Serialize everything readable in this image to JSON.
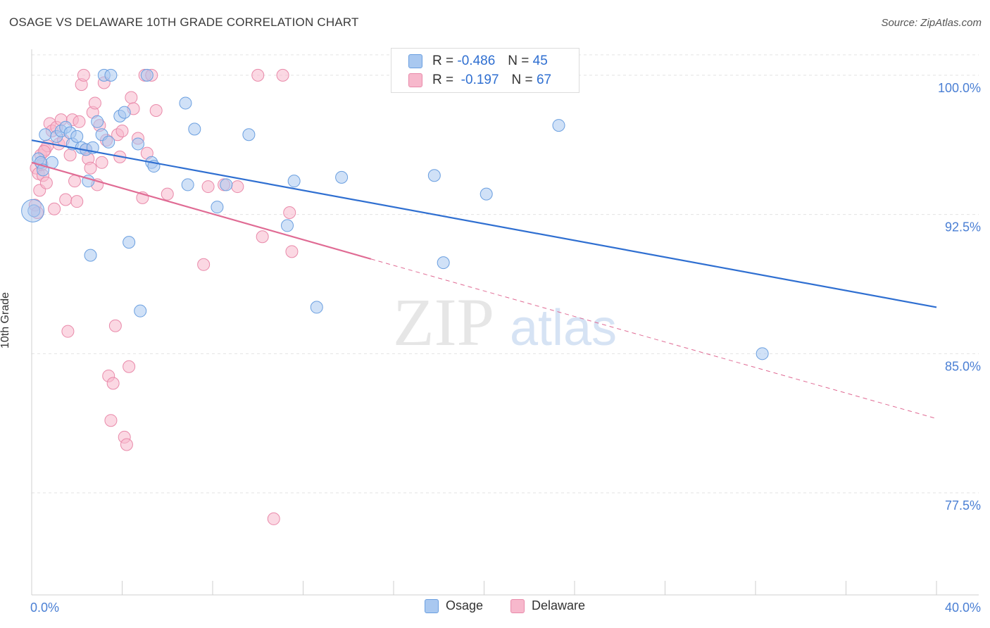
{
  "title": "OSAGE VS DELAWARE 10TH GRADE CORRELATION CHART",
  "source": "Source: ZipAtlas.com",
  "watermark": {
    "zip": "ZIP",
    "atlas": "atlas"
  },
  "legend": {
    "stats": [
      {
        "r_label": "R =",
        "r_value": "-0.486",
        "n_label": "N =",
        "n_value": "45"
      },
      {
        "r_label": "R =",
        "r_value": " -0.197",
        "n_label": "N =",
        "n_value": "67"
      }
    ]
  },
  "colors": {
    "osage_fill": "#a9c8f0",
    "osage_stroke": "#6a9fe0",
    "osage_line": "#2f6fd1",
    "delaware_fill": "#f7b8cc",
    "delaware_stroke": "#e98aaa",
    "delaware_line": "#e06b94",
    "tick_label": "#4a7fd4",
    "grid": "#e3e3e3"
  },
  "chart_data": {
    "type": "scatter",
    "xlabel": "",
    "ylabel": "10th Grade",
    "xlim": [
      0,
      40
    ],
    "ylim": [
      72,
      101.4
    ],
    "x_tick_labels": [
      "0.0%",
      "40.0%"
    ],
    "y_ticks": [
      {
        "value": 100.0,
        "label": "100.0%"
      },
      {
        "value": 92.5,
        "label": "92.5%"
      },
      {
        "value": 85.0,
        "label": "85.0%"
      },
      {
        "value": 77.5,
        "label": "77.5%"
      }
    ],
    "legend_position": "top-center",
    "grid": true,
    "series": [
      {
        "name": "Osage",
        "points": [
          [
            0.1,
            92.7
          ],
          [
            0.3,
            95.5
          ],
          [
            0.4,
            95.3
          ],
          [
            0.5,
            94.9
          ],
          [
            0.6,
            96.8
          ],
          [
            0.9,
            95.3
          ],
          [
            1.1,
            96.7
          ],
          [
            1.3,
            97.0
          ],
          [
            1.5,
            97.2
          ],
          [
            1.7,
            96.9
          ],
          [
            1.8,
            96.3
          ],
          [
            2.0,
            96.7
          ],
          [
            2.2,
            96.1
          ],
          [
            2.4,
            96.0
          ],
          [
            2.5,
            94.3
          ],
          [
            2.6,
            90.3
          ],
          [
            2.7,
            96.1
          ],
          [
            2.9,
            97.5
          ],
          [
            3.1,
            96.8
          ],
          [
            3.2,
            100.0
          ],
          [
            3.4,
            96.4
          ],
          [
            3.5,
            100.0
          ],
          [
            3.9,
            97.8
          ],
          [
            4.1,
            98.0
          ],
          [
            4.3,
            91.0
          ],
          [
            4.7,
            96.3
          ],
          [
            4.8,
            87.3
          ],
          [
            5.1,
            100.0
          ],
          [
            5.3,
            95.3
          ],
          [
            5.4,
            95.1
          ],
          [
            6.8,
            98.5
          ],
          [
            6.9,
            94.1
          ],
          [
            7.2,
            97.1
          ],
          [
            8.2,
            92.9
          ],
          [
            8.6,
            94.1
          ],
          [
            9.6,
            96.8
          ],
          [
            11.3,
            91.9
          ],
          [
            11.6,
            94.3
          ],
          [
            12.6,
            87.5
          ],
          [
            13.7,
            94.5
          ],
          [
            17.8,
            94.6
          ],
          [
            18.2,
            89.9
          ],
          [
            20.1,
            93.6
          ],
          [
            23.3,
            97.3
          ],
          [
            32.3,
            85.0
          ]
        ],
        "trend": {
          "x": [
            0,
            40
          ],
          "y": [
            96.5,
            87.5
          ],
          "dashed": false
        }
      },
      {
        "name": "Delaware",
        "points": [
          [
            0.2,
            95.0
          ],
          [
            0.3,
            94.7
          ],
          [
            0.4,
            95.7
          ],
          [
            0.5,
            94.6
          ],
          [
            0.6,
            96.0
          ],
          [
            0.7,
            96.2
          ],
          [
            0.8,
            97.4
          ],
          [
            0.9,
            97.0
          ],
          [
            1.0,
            92.8
          ],
          [
            1.1,
            97.2
          ],
          [
            1.2,
            96.3
          ],
          [
            1.3,
            97.6
          ],
          [
            1.4,
            96.5
          ],
          [
            1.5,
            93.3
          ],
          [
            1.6,
            86.2
          ],
          [
            1.7,
            95.7
          ],
          [
            1.8,
            97.6
          ],
          [
            1.9,
            94.3
          ],
          [
            2.0,
            93.2
          ],
          [
            2.1,
            97.5
          ],
          [
            2.2,
            99.5
          ],
          [
            2.3,
            100.0
          ],
          [
            2.4,
            96.0
          ],
          [
            2.5,
            95.5
          ],
          [
            2.6,
            95.0
          ],
          [
            2.7,
            98.0
          ],
          [
            2.8,
            98.5
          ],
          [
            2.9,
            94.1
          ],
          [
            3.0,
            97.3
          ],
          [
            3.1,
            95.3
          ],
          [
            3.2,
            99.6
          ],
          [
            3.3,
            96.5
          ],
          [
            3.4,
            83.8
          ],
          [
            3.5,
            81.4
          ],
          [
            3.6,
            83.4
          ],
          [
            3.7,
            86.5
          ],
          [
            3.8,
            96.8
          ],
          [
            3.9,
            95.6
          ],
          [
            4.0,
            97.0
          ],
          [
            4.1,
            80.5
          ],
          [
            4.2,
            80.1
          ],
          [
            4.3,
            84.3
          ],
          [
            4.4,
            98.8
          ],
          [
            4.5,
            98.2
          ],
          [
            4.7,
            96.6
          ],
          [
            4.9,
            93.4
          ],
          [
            5.0,
            100.0
          ],
          [
            5.1,
            95.8
          ],
          [
            5.3,
            100.0
          ],
          [
            5.5,
            98.1
          ],
          [
            6.0,
            93.6
          ],
          [
            7.6,
            89.8
          ],
          [
            7.8,
            94.0
          ],
          [
            8.5,
            94.1
          ],
          [
            9.1,
            94.0
          ],
          [
            10.0,
            100.0
          ],
          [
            10.2,
            91.3
          ],
          [
            10.7,
            76.1
          ],
          [
            11.1,
            100.0
          ],
          [
            11.4,
            92.6
          ],
          [
            11.5,
            90.5
          ],
          [
            0.15,
            93.0
          ],
          [
            0.25,
            92.6
          ],
          [
            0.35,
            93.8
          ],
          [
            0.45,
            95.2
          ],
          [
            0.55,
            95.9
          ],
          [
            0.65,
            94.2
          ]
        ],
        "trend": {
          "x": [
            0,
            15
          ],
          "y": [
            95.3,
            90.1
          ],
          "dashed": false
        },
        "trend_extension": {
          "x": [
            15,
            40
          ],
          "y": [
            90.1,
            81.5
          ],
          "dashed": true
        }
      }
    ]
  }
}
